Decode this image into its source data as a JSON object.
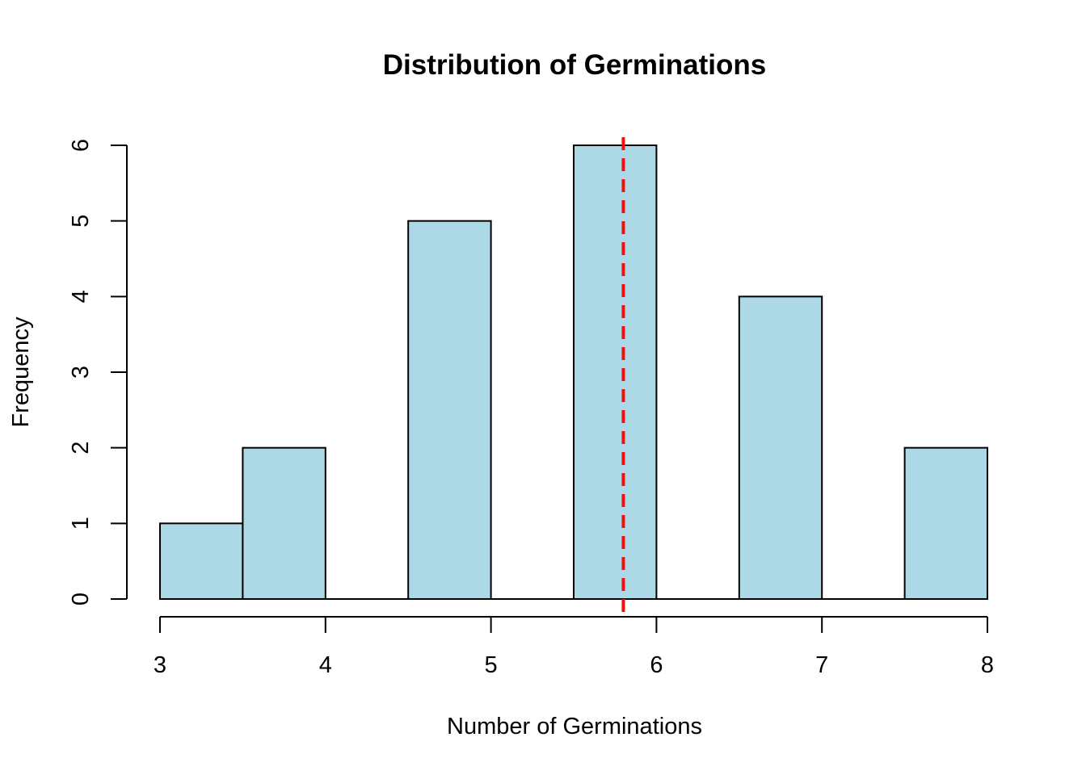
{
  "chart_data": {
    "type": "bar",
    "subtype": "histogram",
    "title": "Distribution of Germinations",
    "xlabel": "Number of Germinations",
    "ylabel": "Frequency",
    "xlim": [
      3,
      8
    ],
    "ylim": [
      0,
      6
    ],
    "x_ticks": [
      3,
      4,
      5,
      6,
      7,
      8
    ],
    "y_ticks": [
      0,
      1,
      2,
      3,
      4,
      5,
      6
    ],
    "bin_width": 0.5,
    "bins": [
      {
        "start": 3.0,
        "end": 3.5,
        "count": 1
      },
      {
        "start": 3.5,
        "end": 4.0,
        "count": 2
      },
      {
        "start": 4.0,
        "end": 4.5,
        "count": 0
      },
      {
        "start": 4.5,
        "end": 5.0,
        "count": 5
      },
      {
        "start": 5.0,
        "end": 5.5,
        "count": 0
      },
      {
        "start": 5.5,
        "end": 6.0,
        "count": 6
      },
      {
        "start": 6.0,
        "end": 6.5,
        "count": 0
      },
      {
        "start": 6.5,
        "end": 7.0,
        "count": 4
      },
      {
        "start": 7.0,
        "end": 7.5,
        "count": 0
      },
      {
        "start": 7.5,
        "end": 8.0,
        "count": 2
      }
    ],
    "mean_line": {
      "x": 5.8,
      "color": "#ee1111",
      "style": "dashed"
    },
    "bar_color": "#add8e6",
    "bar_edge_color": "#000000",
    "grid": false,
    "legend": "none"
  }
}
